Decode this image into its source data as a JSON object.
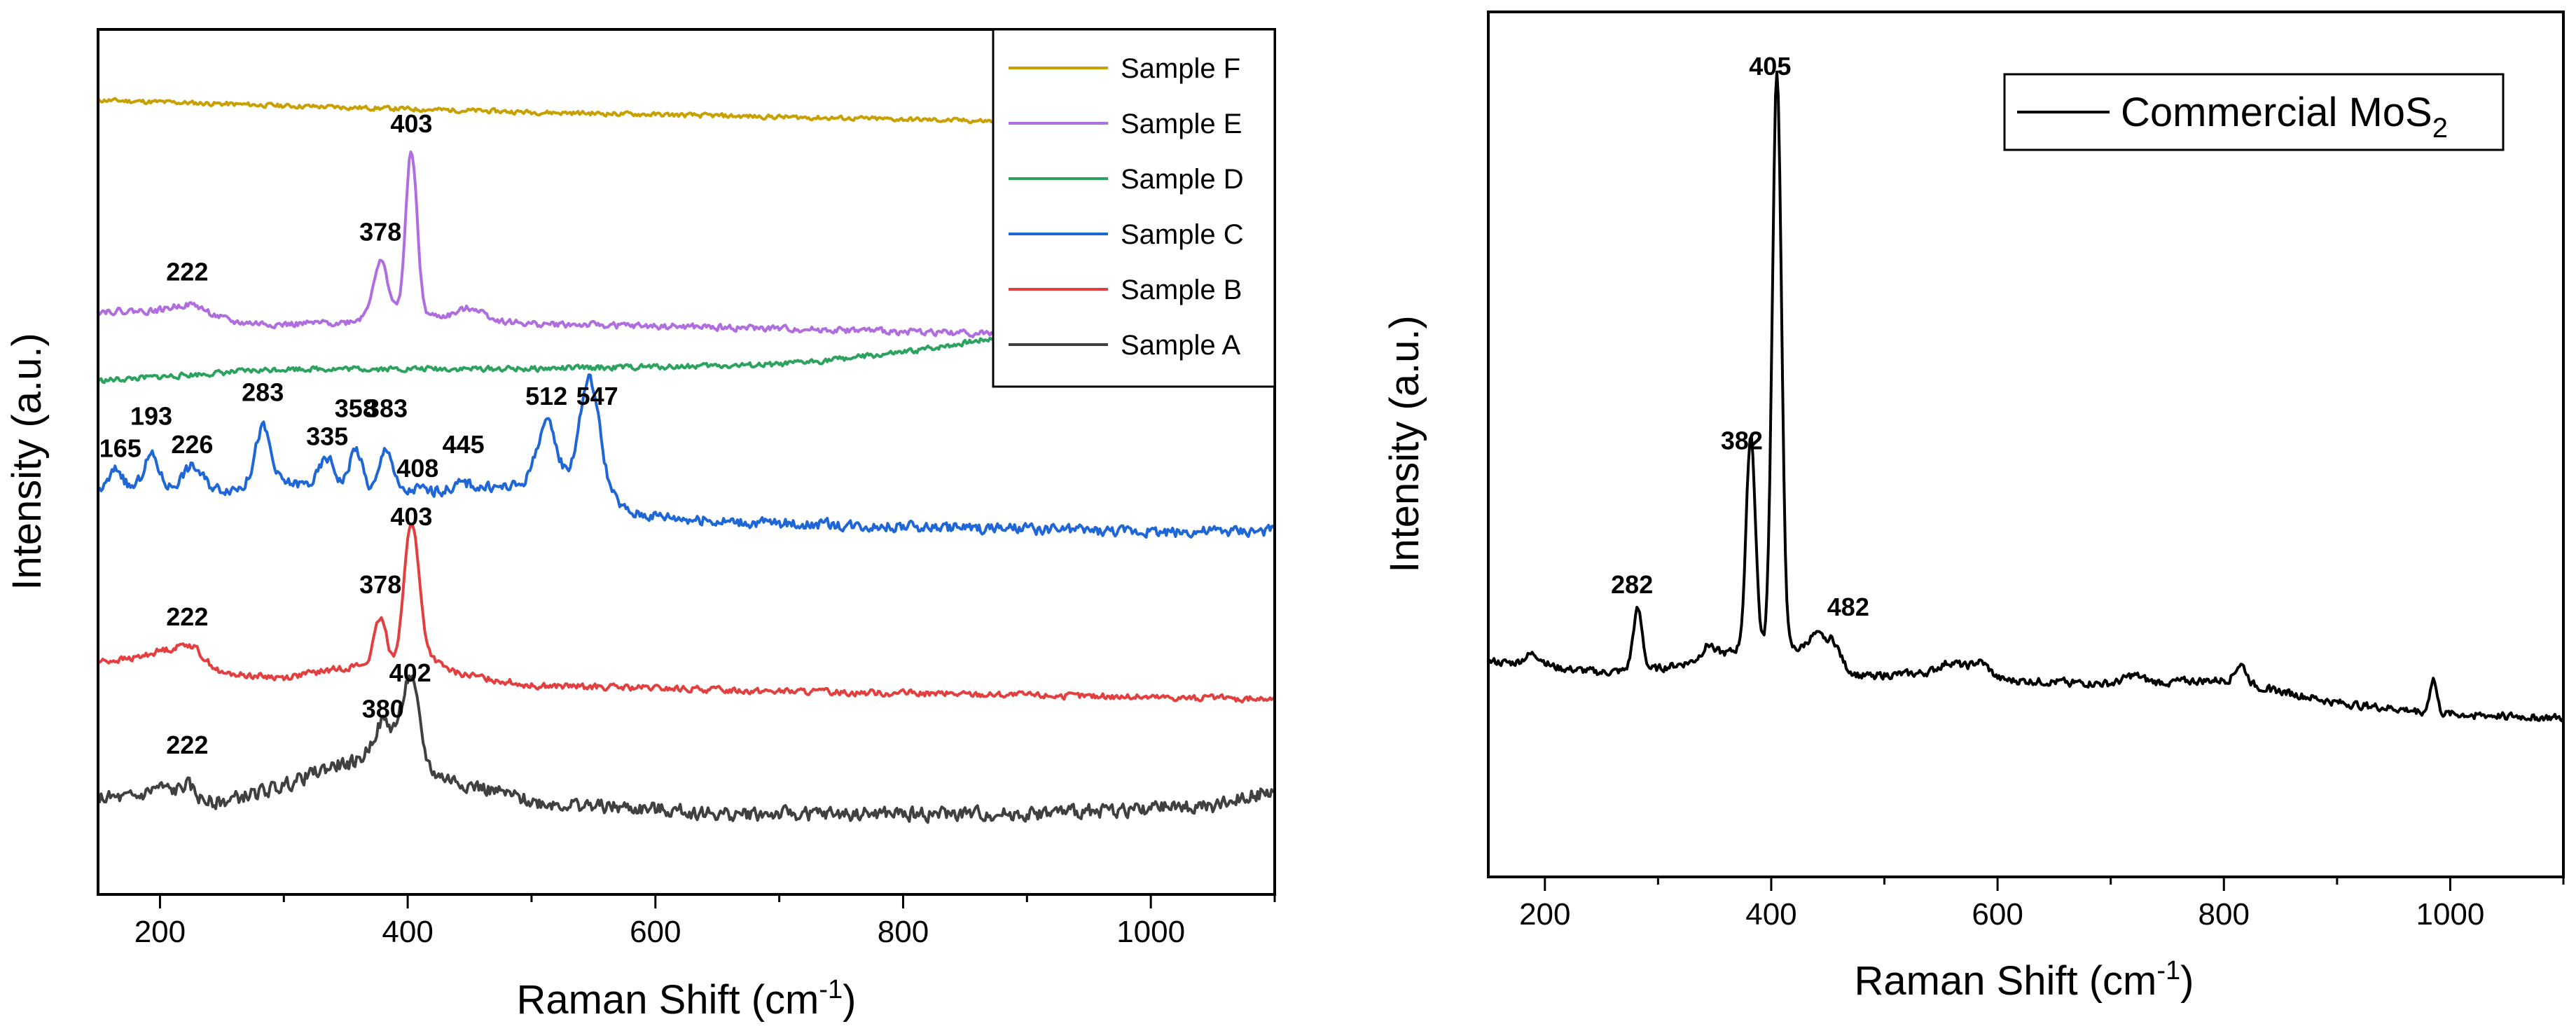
{
  "chart_data": [
    {
      "type": "line",
      "xlabel": "Raman Shift (cm",
      "xlabel_sup": "-1",
      "xlabel_end": ")",
      "ylabel": "Intensity (a.u.)",
      "xlim": [
        150,
        1100
      ],
      "ylim": [
        0,
        100
      ],
      "xticks": [
        200,
        400,
        600,
        800,
        1000
      ],
      "y_ticks_shown": false,
      "legend_position": "top-right",
      "series": [
        {
          "name": "Sample F",
          "color": "#c8a000",
          "baseline": [
            [
              150,
              94.5
            ],
            [
              300,
              93.8
            ],
            [
              500,
              93.0
            ],
            [
              700,
              92.4
            ],
            [
              900,
              91.8
            ],
            [
              1100,
              91.6
            ]
          ],
          "peaks": [],
          "noise": 0.25,
          "seed": 11
        },
        {
          "name": "Sample E",
          "color": "#b06de0",
          "baseline": [
            [
              150,
              68.2
            ],
            [
              230,
              68.2
            ],
            [
              260,
              66.8
            ],
            [
              300,
              66.5
            ],
            [
              350,
              66.8
            ],
            [
              380,
              67.8
            ],
            [
              420,
              67.6
            ],
            [
              500,
              66.6
            ],
            [
              700,
              66.0
            ],
            [
              900,
              65.3
            ],
            [
              1100,
              64.2
            ]
          ],
          "peaks": [
            [
              222,
              0.8,
              12
            ],
            [
              378,
              6.6,
              6
            ],
            [
              403,
              20.5,
              4.5
            ],
            [
              452,
              1.4,
              10
            ]
          ],
          "noise": 0.35,
          "seed": 22
        },
        {
          "name": "Sample D",
          "color": "#2ca25f",
          "baseline": [
            [
              150,
              59.5
            ],
            [
              300,
              61.0
            ],
            [
              500,
              61.0
            ],
            [
              700,
              61.5
            ],
            [
              800,
              63.0
            ],
            [
              900,
              65.5
            ],
            [
              1000,
              69.5
            ],
            [
              1100,
              71.2
            ]
          ],
          "peaks": [],
          "noise": 0.3,
          "seed": 33
        },
        {
          "name": "Sample C",
          "color": "#1f66d6",
          "baseline": [
            [
              150,
              46.0
            ],
            [
              250,
              46.0
            ],
            [
              300,
              46.8
            ],
            [
              400,
              45.5
            ],
            [
              500,
              46.5
            ],
            [
              545,
              47.0
            ],
            [
              580,
              43.0
            ],
            [
              650,
              42.0
            ],
            [
              800,
              41.3
            ],
            [
              1000,
              40.7
            ],
            [
              1100,
              40.8
            ]
          ],
          "peaks": [
            [
              165,
              2.5,
              5
            ],
            [
              193,
              4.2,
              6
            ],
            [
              226,
              2.8,
              8
            ],
            [
              283,
              7.2,
              6
            ],
            [
              335,
              3.5,
              6
            ],
            [
              358,
              5.0,
              5
            ],
            [
              383,
              5.5,
              5
            ],
            [
              408,
              0.5,
              5
            ],
            [
              445,
              0.8,
              8
            ],
            [
              512,
              7.5,
              8
            ],
            [
              547,
              13.0,
              8
            ]
          ],
          "noise": 0.6,
          "seed": 44
        },
        {
          "name": "Sample B",
          "color": "#e43f3f",
          "baseline": [
            [
              150,
              24.5
            ],
            [
              230,
              25.5
            ],
            [
              250,
              23.0
            ],
            [
              300,
              22.5
            ],
            [
              360,
              24.0
            ],
            [
              420,
              23.5
            ],
            [
              500,
              21.5
            ],
            [
              700,
              20.8
            ],
            [
              900,
              20.3
            ],
            [
              1100,
              19.8
            ]
          ],
          "peaks": [
            [
              205,
              0.8,
              12
            ],
            [
              222,
              1.0,
              6
            ],
            [
              378,
              6.0,
              5
            ],
            [
              403,
              17.5,
              6
            ],
            [
              415,
              1.5,
              10
            ]
          ],
          "noise": 0.35,
          "seed": 55
        },
        {
          "name": "Sample A",
          "color": "#404040",
          "baseline": [
            [
              150,
              7.5
            ],
            [
              250,
              7.0
            ],
            [
              300,
              9.0
            ],
            [
              340,
              11.5
            ],
            [
              380,
              12.5
            ],
            [
              430,
              10.0
            ],
            [
              500,
              7.0
            ],
            [
              650,
              5.5
            ],
            [
              900,
              5.5
            ],
            [
              1050,
              6.5
            ],
            [
              1100,
              8.5
            ]
          ],
          "peaks": [
            [
              200,
              1.5,
              10
            ],
            [
              222,
              1.8,
              6
            ],
            [
              380,
              4.5,
              8
            ],
            [
              402,
              11.0,
              7
            ]
          ],
          "noise": 0.8,
          "seed": 66
        }
      ],
      "annotations": [
        {
          "text": "403",
          "x": 403,
          "y": 90.5
        },
        {
          "text": "378",
          "x": 378,
          "y": 77.0
        },
        {
          "text": "222",
          "x": 222,
          "y": 72.0
        },
        {
          "text": "283",
          "x": 283,
          "y": 57.0
        },
        {
          "text": "193",
          "x": 193,
          "y": 54.0
        },
        {
          "text": "358",
          "x": 358,
          "y": 55.0
        },
        {
          "text": "383",
          "x": 383,
          "y": 55.0
        },
        {
          "text": "335",
          "x": 335,
          "y": 51.5
        },
        {
          "text": "512",
          "x": 512,
          "y": 56.5
        },
        {
          "text": "547",
          "x": 553,
          "y": 56.5
        },
        {
          "text": "165",
          "x": 168,
          "y": 50.0
        },
        {
          "text": "226",
          "x": 226,
          "y": 50.5
        },
        {
          "text": "445",
          "x": 445,
          "y": 50.5
        },
        {
          "text": "408",
          "x": 408,
          "y": 47.5
        },
        {
          "text": "403",
          "x": 403,
          "y": 41.5
        },
        {
          "text": "378",
          "x": 378,
          "y": 33.0
        },
        {
          "text": "222",
          "x": 222,
          "y": 29.0
        },
        {
          "text": "402",
          "x": 402,
          "y": 22.0
        },
        {
          "text": "380",
          "x": 380,
          "y": 17.5
        },
        {
          "text": "222",
          "x": 222,
          "y": 13.0
        }
      ]
    },
    {
      "type": "line",
      "xlabel": "Raman Shift (cm",
      "xlabel_sup": "-1",
      "xlabel_end": ")",
      "ylabel": "Intensity (a.u.)",
      "xlim": [
        150,
        1100
      ],
      "ylim": [
        0,
        100
      ],
      "xticks": [
        200,
        400,
        600,
        800,
        1000
      ],
      "y_ticks_shown": false,
      "legend_position": "top-right",
      "series": [
        {
          "name": "Commercial MoS",
          "name_sub": "2",
          "color": "#000000",
          "baseline": [
            [
              150,
              20.0
            ],
            [
              250,
              18.5
            ],
            [
              300,
              19.0
            ],
            [
              350,
              20.5
            ],
            [
              380,
              22.0
            ],
            [
              420,
              21.5
            ],
            [
              480,
              18.0
            ],
            [
              550,
              18.5
            ],
            [
              600,
              17.5
            ],
            [
              700,
              17.0
            ],
            [
              800,
              17.5
            ],
            [
              900,
              14.5
            ],
            [
              1000,
              13.0
            ],
            [
              1100,
              12.5
            ]
          ],
          "peaks": [
            [
              190,
              1.5,
              8
            ],
            [
              282,
              8.0,
              4
            ],
            [
              345,
              1.8,
              6
            ],
            [
              382,
              28.0,
              4
            ],
            [
              405,
              76.5,
              4
            ],
            [
              440,
              3.0,
              8
            ],
            [
              455,
              2.8,
              6
            ],
            [
              560,
              1.5,
              10
            ],
            [
              585,
              2.0,
              8
            ],
            [
              720,
              1.0,
              8
            ],
            [
              815,
              2.5,
              5
            ],
            [
              985,
              4.5,
              3
            ]
          ],
          "noise": 0.45,
          "seed": 77
        }
      ],
      "annotations": [
        {
          "text": "405",
          "x": 399,
          "y": 97.5
        },
        {
          "text": "382",
          "x": 374,
          "y": 48.0
        },
        {
          "text": "282",
          "x": 277,
          "y": 29.0
        },
        {
          "text": "482",
          "x": 468,
          "y": 26.0
        }
      ]
    }
  ]
}
